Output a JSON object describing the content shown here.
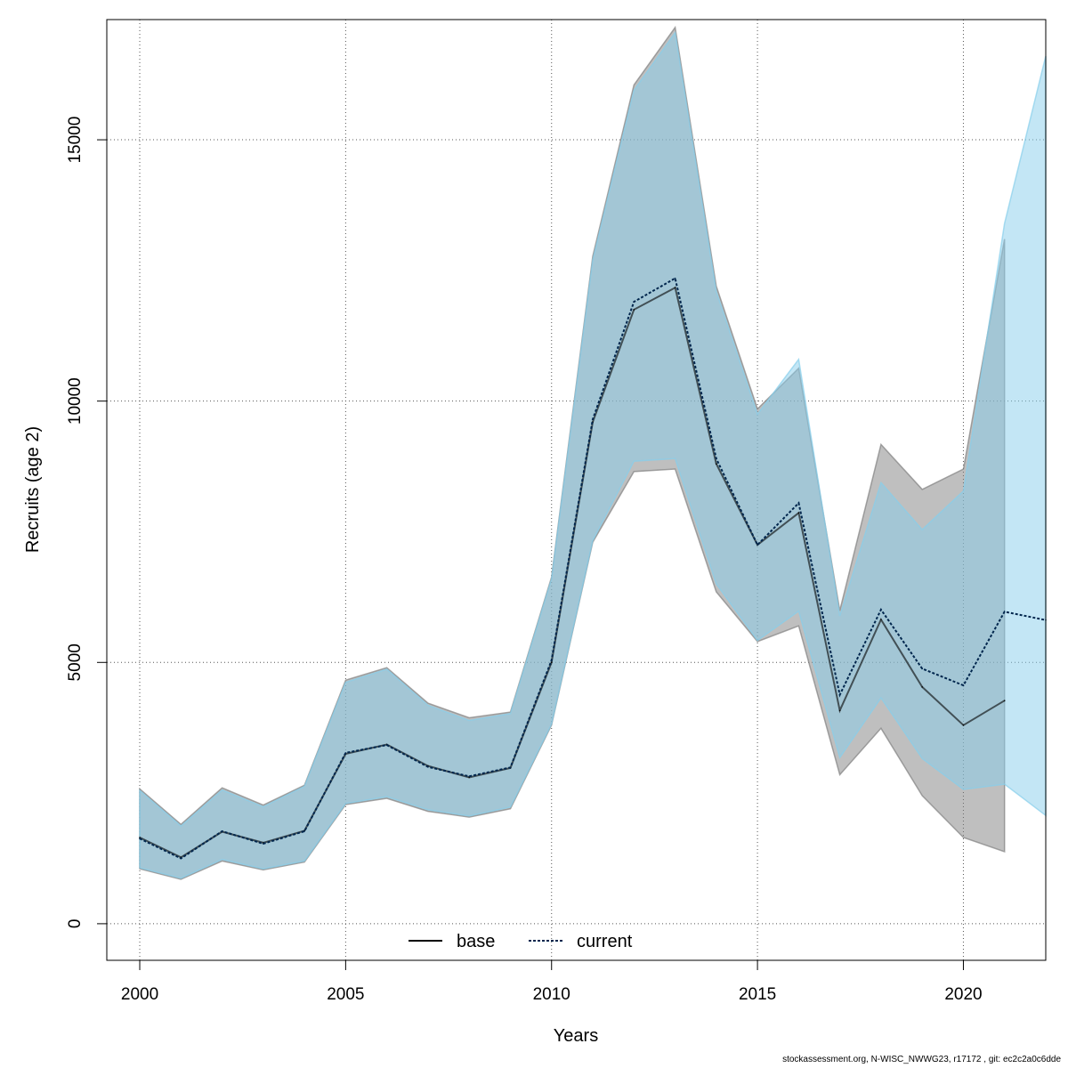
{
  "chart_data": {
    "type": "area",
    "xlabel": "Years",
    "ylabel": "Recruits (age 2)",
    "xlim": [
      1999.2,
      2022
    ],
    "ylim": [
      -700,
      17300
    ],
    "x_ticks": [
      2000,
      2005,
      2010,
      2015,
      2020
    ],
    "y_ticks": [
      0,
      5000,
      10000,
      15000
    ],
    "grid": true,
    "legend": {
      "placement": "bottom",
      "entries": [
        "base",
        "current"
      ]
    },
    "series": [
      {
        "name": "base",
        "line_color": "#000000",
        "band_color": "#808080",
        "x": [
          2000,
          2001,
          2002,
          2003,
          2004,
          2005,
          2006,
          2007,
          2008,
          2009,
          2010,
          2011,
          2012,
          2013,
          2014,
          2015,
          2016,
          2017,
          2018,
          2019,
          2020,
          2021
        ],
        "values": [
          1650,
          1270,
          1760,
          1550,
          1780,
          3250,
          3430,
          3020,
          2800,
          2980,
          5000,
          9600,
          11750,
          12170,
          8800,
          7250,
          7860,
          4080,
          5820,
          4530,
          3800,
          4270
        ],
        "lower": [
          1050,
          850,
          1200,
          1030,
          1180,
          2280,
          2400,
          2150,
          2040,
          2200,
          3800,
          7300,
          8650,
          8700,
          6350,
          5400,
          5700,
          2850,
          3740,
          2450,
          1650,
          1380
        ],
        "upper": [
          2580,
          1900,
          2600,
          2270,
          2650,
          4660,
          4900,
          4220,
          3940,
          4050,
          6630,
          12770,
          16050,
          17150,
          12200,
          9850,
          10630,
          5990,
          9170,
          8310,
          8700,
          13100
        ]
      },
      {
        "name": "current",
        "line_color": "#00264d",
        "band_color": "#87ceeb",
        "x": [
          2000,
          2001,
          2002,
          2003,
          2004,
          2005,
          2006,
          2007,
          2008,
          2009,
          2010,
          2011,
          2012,
          2013,
          2014,
          2015,
          2016,
          2017,
          2018,
          2019,
          2020,
          2021,
          2022
        ],
        "values": [
          1630,
          1250,
          1770,
          1530,
          1770,
          3270,
          3420,
          3000,
          2820,
          2990,
          5040,
          9650,
          11900,
          12350,
          8900,
          7250,
          8050,
          4380,
          6010,
          4880,
          4560,
          5970,
          5810
        ],
        "lower": [
          1070,
          870,
          1230,
          1050,
          1200,
          2300,
          2430,
          2180,
          2060,
          2230,
          3820,
          7330,
          8850,
          8900,
          6500,
          5420,
          5980,
          3180,
          4320,
          3160,
          2570,
          2670,
          2070
        ],
        "upper": [
          2550,
          1870,
          2560,
          2240,
          2630,
          4620,
          4870,
          4180,
          3890,
          4020,
          6600,
          12700,
          15950,
          17050,
          12100,
          9750,
          10800,
          5890,
          8440,
          7540,
          8280,
          13400,
          16600
        ]
      }
    ]
  },
  "footer": "stockassessment.org, N-WISC_NWWG23, r17172 , git: ec2c2a0c6dde"
}
